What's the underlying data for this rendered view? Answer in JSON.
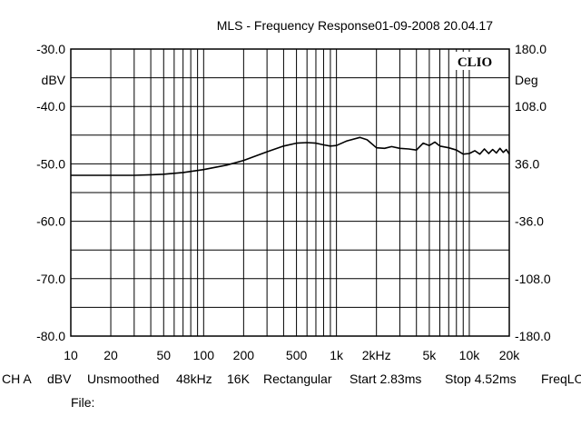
{
  "chart_data": {
    "type": "line",
    "title": "MLS - Frequency Response",
    "timestamp": "01-09-2008 20.04.17",
    "brand": "CLIO",
    "left_unit": "dBV",
    "right_unit": "Deg",
    "xlim": [
      10,
      20000
    ],
    "x_scale": "log",
    "ylim": [
      -80,
      -30
    ],
    "y2lim": [
      -180,
      180
    ],
    "grid": true,
    "x_ticks": [
      {
        "value": 10,
        "label": "10"
      },
      {
        "value": 20,
        "label": "20"
      },
      {
        "value": 50,
        "label": "50"
      },
      {
        "value": 100,
        "label": "100"
      },
      {
        "value": 200,
        "label": "200"
      },
      {
        "value": 500,
        "label": "500"
      },
      {
        "value": 1000,
        "label": "1k"
      },
      {
        "value": 2000,
        "label": "2kHz"
      },
      {
        "value": 5000,
        "label": "5k"
      },
      {
        "value": 10000,
        "label": "10k"
      },
      {
        "value": 20000,
        "label": "20k"
      }
    ],
    "y_ticks": [
      {
        "value": -30,
        "label": "-30.0"
      },
      {
        "value": -40,
        "label": "-40.0"
      },
      {
        "value": -50,
        "label": "-50.0"
      },
      {
        "value": -60,
        "label": "-60.0"
      },
      {
        "value": -70,
        "label": "-70.0"
      },
      {
        "value": -80,
        "label": "-80.0"
      }
    ],
    "y2_ticks": [
      {
        "value": 180,
        "label": "180.0"
      },
      {
        "value": 108,
        "label": "108.0"
      },
      {
        "value": 36,
        "label": "36.0"
      },
      {
        "value": -36,
        "label": "-36.0"
      },
      {
        "value": -108,
        "label": "-108.0"
      },
      {
        "value": -180,
        "label": "-180.0"
      }
    ],
    "series": [
      {
        "color": "#000000",
        "x": [
          10,
          15,
          20,
          30,
          40,
          50,
          70,
          100,
          150,
          200,
          300,
          400,
          500,
          600,
          700,
          800,
          900,
          1000,
          1200,
          1500,
          1700,
          2000,
          2300,
          2600,
          3000,
          3500,
          4000,
          4500,
          5000,
          5500,
          6000,
          7000,
          8000,
          9000,
          10000,
          11000,
          12000,
          13000,
          14000,
          15000,
          16000,
          17000,
          18000,
          19000,
          20000
        ],
        "y": [
          -52.0,
          -52.0,
          -52.0,
          -52.0,
          -51.9,
          -51.8,
          -51.5,
          -51.0,
          -50.2,
          -49.4,
          -47.9,
          -46.9,
          -46.4,
          -46.3,
          -46.4,
          -46.7,
          -46.9,
          -46.8,
          -46.0,
          -45.4,
          -45.8,
          -47.2,
          -47.3,
          -47.0,
          -47.3,
          -47.4,
          -47.6,
          -46.4,
          -46.8,
          -46.2,
          -46.9,
          -47.2,
          -47.6,
          -48.3,
          -48.2,
          -47.7,
          -48.3,
          -47.4,
          -48.2,
          -47.5,
          -48.1,
          -47.3,
          -48.0,
          -47.5,
          -48.3
        ]
      }
    ]
  },
  "footer": {
    "ch": "CH A",
    "unit": "dBV",
    "smoothing": "Unsmoothed",
    "rate": "48kHz",
    "size": "16K",
    "window": "Rectangular",
    "start": "Start 2.83ms",
    "stop": "Stop 4.52ms",
    "freq": "FreqLO",
    "file_label": "File:"
  }
}
